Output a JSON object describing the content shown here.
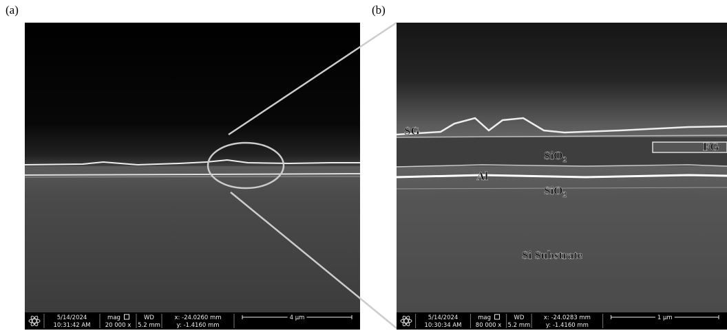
{
  "panels": [
    {
      "label": "(a)",
      "info": {
        "date": "5/14/2024",
        "time": "10:31:42 AM",
        "mag_label": "mag",
        "mag": "20 000 x",
        "wd_label": "WD",
        "wd": "5.2 mm",
        "x": "x: -24.0260 mm",
        "y": "y: -1.4160 mm",
        "scale": "4 μm"
      }
    },
    {
      "label": "(b)",
      "info": {
        "date": "5/14/2024",
        "time": "10:30:34 AM",
        "mag_label": "mag",
        "mag": "80 000 x",
        "wd_label": "WD",
        "wd": "5.2 mm",
        "x": "x: -24.0283 mm",
        "y": "y: -1.4160 mm",
        "scale": "1 μm"
      },
      "annotations": {
        "sg": "SG",
        "sio2_top": {
          "text": "SiO",
          "subscript": "2"
        },
        "fg": "FG",
        "al": "Al",
        "sio2_bottom": {
          "text": "SiO",
          "subscript": "2"
        },
        "substrate": "Si Substrate"
      }
    }
  ]
}
